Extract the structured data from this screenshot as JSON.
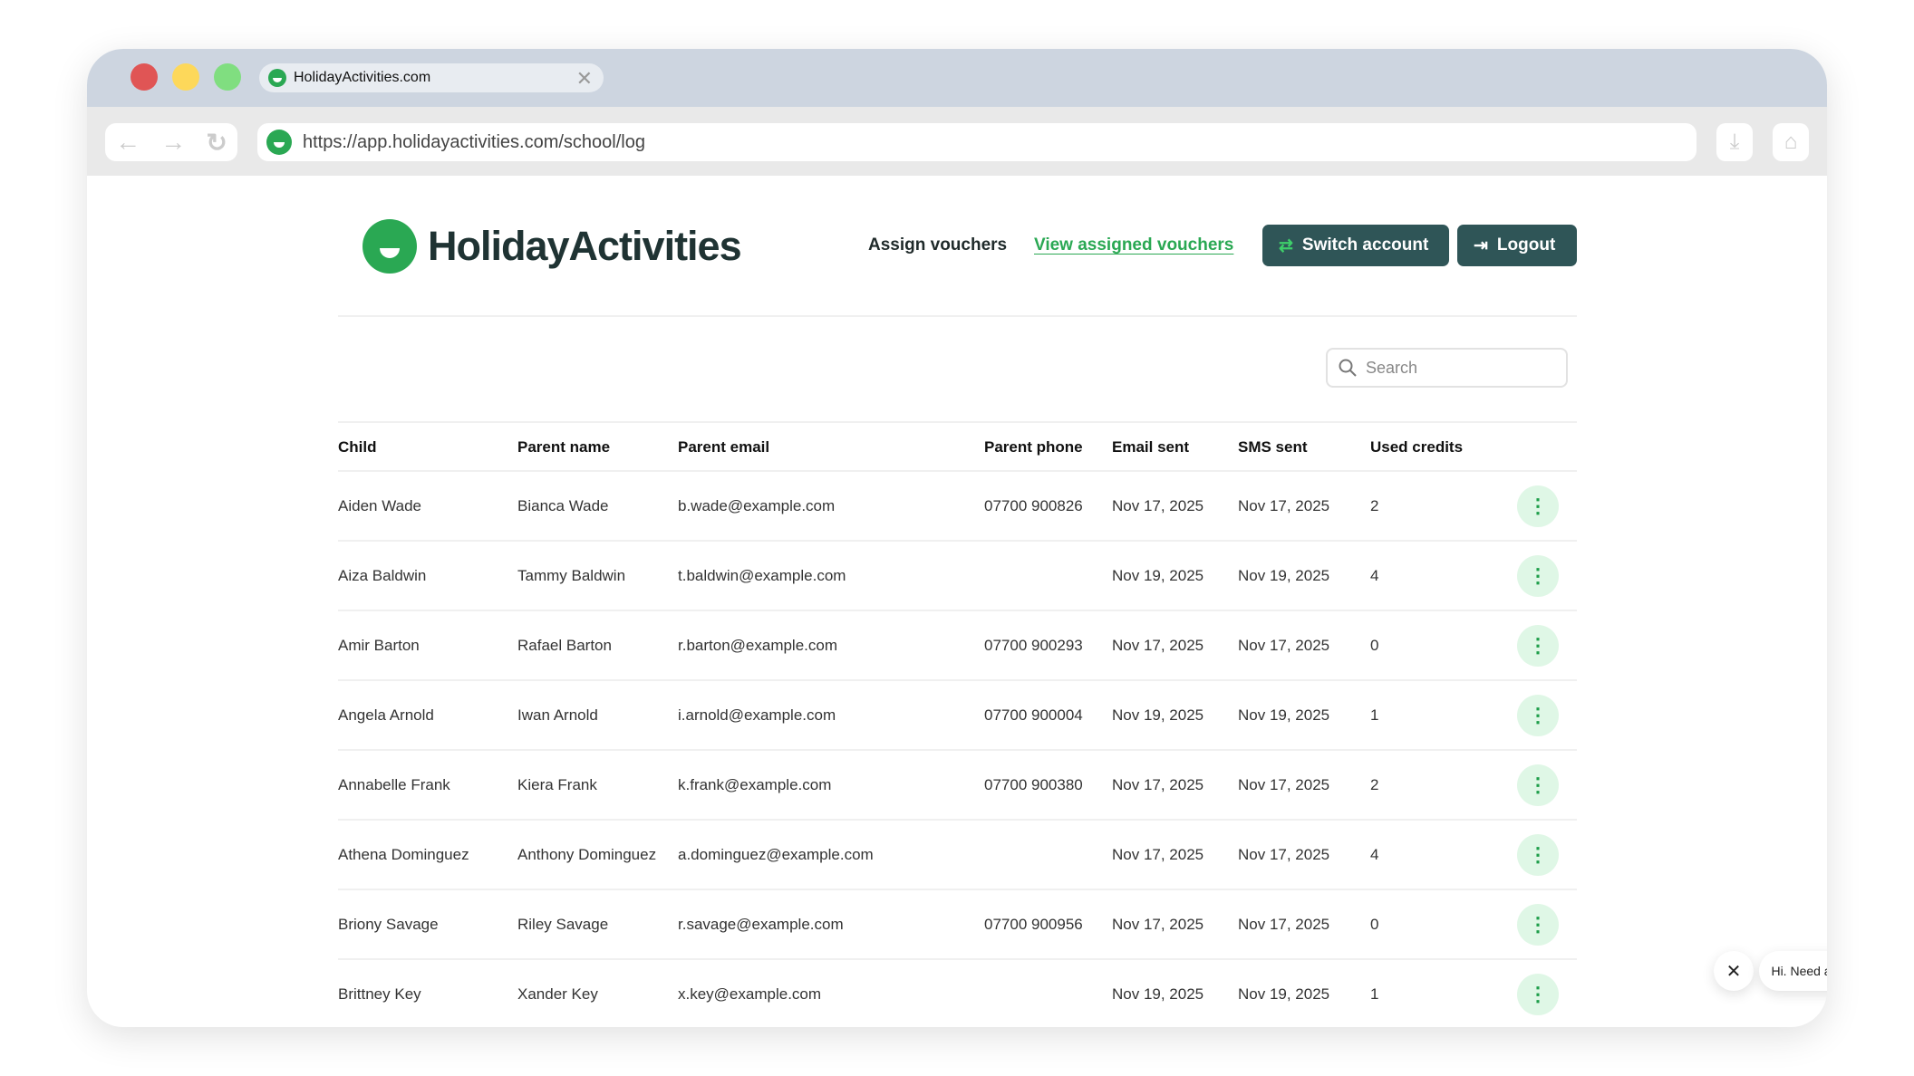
{
  "browser": {
    "tab_title": "HolidayActivities.com",
    "url": "https://app.holidayactivities.com/school/log"
  },
  "header": {
    "logo_text": "HolidayActivities",
    "nav": [
      "Assign vouchers",
      "View assigned vouchers"
    ],
    "switch_account": "Switch account",
    "logout": "Logout"
  },
  "colors": {
    "brand": "#2aa853",
    "button": "#2f5557"
  },
  "search": {
    "placeholder": "Search"
  },
  "table": {
    "columns": [
      "Child",
      "Parent name",
      "Parent email",
      "Parent phone",
      "Email sent",
      "SMS sent",
      "Used credits"
    ],
    "rows": [
      [
        "Aiden Wade",
        "Bianca Wade",
        "b.wade@example.com",
        "07700 900826",
        "Nov 17, 2025",
        "Nov 17, 2025",
        "2"
      ],
      [
        "Aiza Baldwin",
        "Tammy Baldwin",
        "t.baldwin@example.com",
        "",
        "Nov 19, 2025",
        "Nov 19, 2025",
        "4"
      ],
      [
        "Amir Barton",
        "Rafael Barton",
        "r.barton@example.com",
        "07700 900293",
        "Nov 17, 2025",
        "Nov 17, 2025",
        "0"
      ],
      [
        "Angela Arnold",
        "Iwan Arnold",
        "i.arnold@example.com",
        "07700 900004",
        "Nov 19, 2025",
        "Nov 19, 2025",
        "1"
      ],
      [
        "Annabelle Frank",
        "Kiera Frank",
        "k.frank@example.com",
        "07700 900380",
        "Nov 17, 2025",
        "Nov 17, 2025",
        "2"
      ],
      [
        "Athena Dominguez",
        "Anthony Dominguez",
        "a.dominguez@example.com",
        "",
        "Nov 17, 2025",
        "Nov 17, 2025",
        "4"
      ],
      [
        "Briony Savage",
        "Riley Savage",
        "r.savage@example.com",
        "07700 900956",
        "Nov 17, 2025",
        "Nov 17, 2025",
        "0"
      ],
      [
        "Brittney Key",
        "Xander Key",
        "x.key@example.com",
        "",
        "Nov 19, 2025",
        "Nov 19, 2025",
        "1"
      ]
    ]
  },
  "chat": {
    "greeting": "Hi. Need any help?"
  }
}
